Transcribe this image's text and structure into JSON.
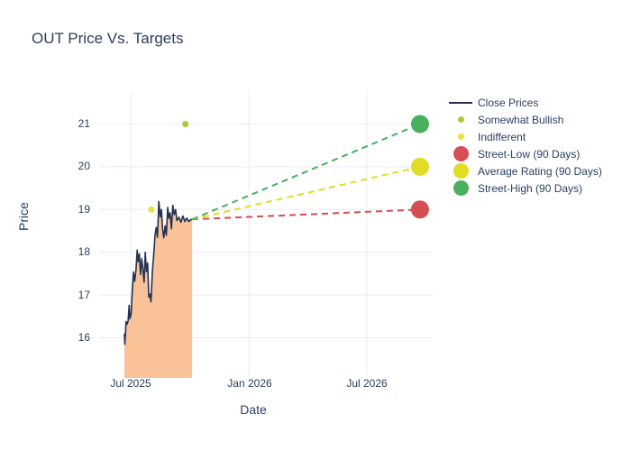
{
  "chart_data": {
    "type": "line",
    "title": "OUT Price Vs. Targets",
    "xlabel": "Date",
    "ylabel": "Price",
    "xticks": [
      "Jul 2025",
      "Jan 2026",
      "Jul 2026"
    ],
    "yticks": [
      "16",
      "17",
      "18",
      "19",
      "20",
      "21"
    ],
    "x_unit": "months since Jul 2025",
    "xtick_months": [
      0,
      6,
      12
    ],
    "ytick_values": [
      16,
      17,
      18,
      19,
      20,
      21
    ],
    "xlim_months": [
      -1.6,
      15.35
    ],
    "ylim": [
      15.06,
      21.79
    ],
    "grid": true,
    "legend_position": "right",
    "close_series": {
      "name": "Close Prices",
      "color": "#233250",
      "fill_color": "#fac298",
      "x": [
        -0.32,
        -0.3,
        -0.27,
        -0.24,
        -0.18,
        -0.13,
        -0.08,
        -0.04,
        0.02,
        0.08,
        0.14,
        0.2,
        0.27,
        0.33,
        0.38,
        0.44,
        0.5,
        0.56,
        0.62,
        0.68,
        0.74,
        0.8,
        0.86,
        0.92,
        0.98,
        1.03,
        1.1,
        1.17,
        1.24,
        1.3,
        1.36,
        1.43,
        1.5,
        1.56,
        1.62,
        1.68,
        1.75,
        1.81,
        1.88,
        1.94,
        2.0,
        2.07,
        2.14,
        2.21,
        2.28,
        2.35,
        2.45,
        2.55,
        2.65,
        2.75,
        2.85,
        2.95,
        3.05,
        3.12
      ],
      "y": [
        16.1,
        15.85,
        16.05,
        16.38,
        16.32,
        16.4,
        16.76,
        16.45,
        16.55,
        17.1,
        17.54,
        17.32,
        17.6,
        18.05,
        17.78,
        17.96,
        17.48,
        17.85,
        17.6,
        17.3,
        18.0,
        17.55,
        17.75,
        16.95,
        17.02,
        16.84,
        17.55,
        17.95,
        18.42,
        18.58,
        18.35,
        19.19,
        18.83,
        19.0,
        18.55,
        18.34,
        18.62,
        18.4,
        19.05,
        18.8,
        18.92,
        18.55,
        19.1,
        18.88,
        19.0,
        18.74,
        18.82,
        18.7,
        18.85,
        18.72,
        18.8,
        18.72,
        18.76,
        18.77
      ]
    },
    "sentiment_markers": [
      {
        "label": "Somewhat Bullish",
        "x": 2.78,
        "y": 21.0,
        "color": "#a3cf35"
      },
      {
        "label": "Indifferent",
        "x": 1.05,
        "y": 19.0,
        "color": "#e8e337"
      }
    ],
    "forecast_origin": {
      "x": 3.12,
      "y": 18.77
    },
    "targets": [
      {
        "label": "Street-Low (90 Days)",
        "x": 14.7,
        "y": 19.0,
        "color": "#d44e53"
      },
      {
        "label": "Average Rating (90 Days)",
        "x": 14.7,
        "y": 20.0,
        "color": "#e0dd24"
      },
      {
        "label": "Street-High (90 Days)",
        "x": 14.7,
        "y": 21.0,
        "color": "#48b05f"
      }
    ],
    "legend": [
      {
        "label": "Close Prices",
        "kind": "line",
        "color": "#233250"
      },
      {
        "label": "Somewhat Bullish",
        "kind": "dot-small",
        "color": "#a3cf35"
      },
      {
        "label": "Indifferent",
        "kind": "dot-small",
        "color": "#e8e337"
      },
      {
        "label": "Street-Low (90 Days)",
        "kind": "dot-large",
        "color": "#d44e53"
      },
      {
        "label": "Average Rating (90 Days)",
        "kind": "dot-large",
        "color": "#e0dd24"
      },
      {
        "label": "Street-High (90 Days)",
        "kind": "dot-large",
        "color": "#48b05f"
      }
    ],
    "colors": {
      "text": "#2a3f5f",
      "gridline": "#e7edf6",
      "background": "#ffffff"
    }
  }
}
